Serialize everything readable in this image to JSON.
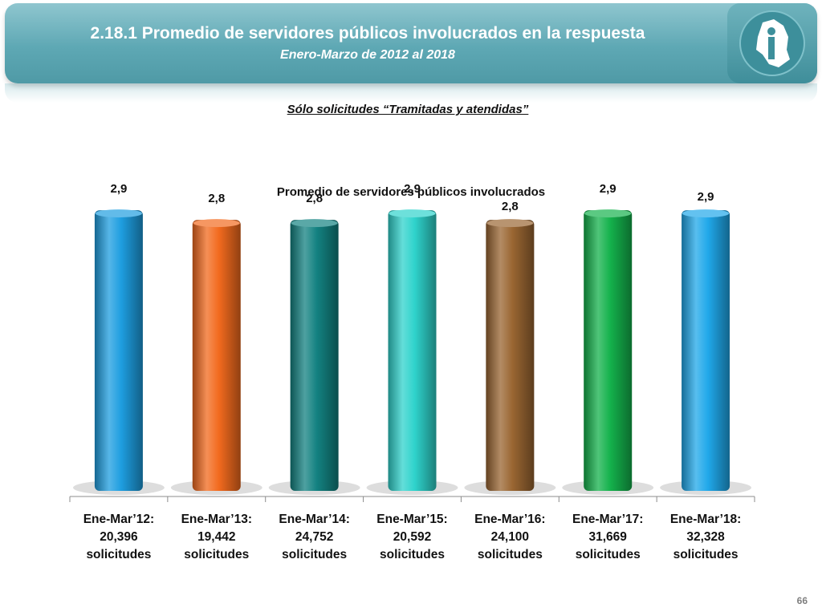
{
  "header": {
    "title": "2.18.1 Promedio de servidores públicos involucrados en la respuesta",
    "subtitle": "Enero-Marzo de 2012 al 2018"
  },
  "note": "Sólo solicitudes “Tramitadas y atendidas”",
  "page_number": "66",
  "chart_data": {
    "type": "bar",
    "title": "Promedio de servidores públicos involucrados",
    "categories": [
      [
        "Ene-Mar’12:",
        "20,396",
        "solicitudes"
      ],
      [
        "Ene-Mar’13:",
        "19,442",
        "solicitudes"
      ],
      [
        "Ene-Mar’14:",
        "24,752",
        "solicitudes"
      ],
      [
        "Ene-Mar’15:",
        "20,592",
        "solicitudes"
      ],
      [
        "Ene-Mar’16:",
        "24,100",
        "solicitudes"
      ],
      [
        "Ene-Mar’17:",
        "31,669",
        "solicitudes"
      ],
      [
        "Ene-Mar’18:",
        "32,328",
        "solicitudes"
      ]
    ],
    "values": [
      2.9,
      2.8,
      2.8,
      2.9,
      2.8,
      2.9,
      2.9
    ],
    "value_labels": [
      "2,9",
      "2,8",
      "2,8",
      "2,9",
      "2,8",
      "2,9",
      "2,9"
    ],
    "colors": [
      "#1e9ee0",
      "#f26a1e",
      "#138281",
      "#2fd3cc",
      "#9a6632",
      "#14b24c",
      "#20a8ea"
    ],
    "ylim": [
      0,
      3
    ],
    "grid": false,
    "legend": "none"
  }
}
